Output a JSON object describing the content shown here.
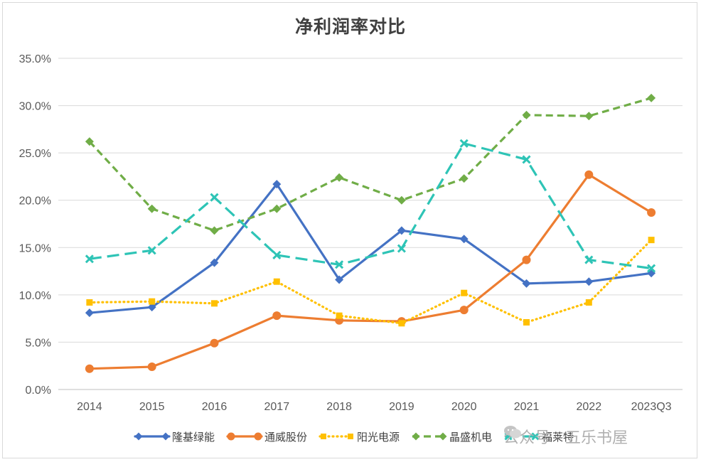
{
  "chart_data": {
    "type": "line",
    "title": "净利润率对比",
    "categories": [
      "2014",
      "2015",
      "2016",
      "2017",
      "2018",
      "2019",
      "2020",
      "2021",
      "2022",
      "2023Q3"
    ],
    "ylim": [
      0,
      35
    ],
    "yticks": [
      "0.0%",
      "5.0%",
      "10.0%",
      "15.0%",
      "20.0%",
      "25.0%",
      "30.0%",
      "35.0%"
    ],
    "grid": true,
    "legend_position": "bottom",
    "series": [
      {
        "name": "隆基绿能",
        "color": "#4472c4",
        "dash": "solid",
        "marker": "diamond",
        "values": [
          8.1,
          8.7,
          13.4,
          21.7,
          11.6,
          16.8,
          15.9,
          11.2,
          11.4,
          12.3
        ]
      },
      {
        "name": "通威股份",
        "color": "#ed7d31",
        "dash": "solid",
        "marker": "circle",
        "values": [
          2.2,
          2.4,
          4.9,
          7.8,
          7.3,
          7.2,
          8.4,
          13.7,
          22.7,
          18.7
        ]
      },
      {
        "name": "阳光电源",
        "color": "#ffc000",
        "dash": "dot",
        "marker": "square",
        "values": [
          9.2,
          9.3,
          9.1,
          11.4,
          7.8,
          7.0,
          10.2,
          7.1,
          9.2,
          15.8
        ]
      },
      {
        "name": "晶盛机电",
        "color": "#70ad47",
        "dash": "dash",
        "marker": "diamond",
        "values": [
          26.2,
          19.1,
          16.8,
          19.1,
          22.4,
          20.0,
          22.3,
          29.0,
          28.9,
          30.8
        ]
      },
      {
        "name": "福莱特",
        "color": "#2ec4b6",
        "dash": "longdash",
        "marker": "cross",
        "values": [
          13.8,
          14.7,
          20.3,
          14.2,
          13.2,
          14.9,
          26.0,
          24.3,
          13.7,
          12.8
        ]
      }
    ]
  },
  "watermark": "公众号 · 五乐书屋"
}
